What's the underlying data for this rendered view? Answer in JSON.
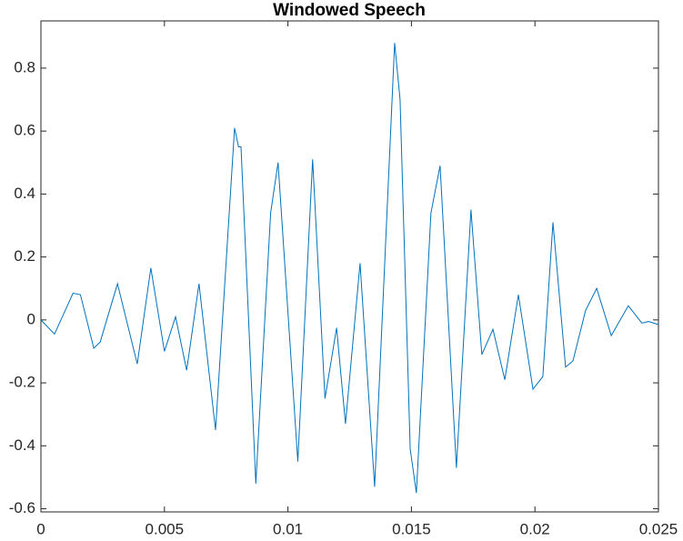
{
  "chart_data": {
    "type": "line",
    "title": "Windowed Speech",
    "x": [
      0,
      0.00055,
      0.0013,
      0.0016,
      0.00214,
      0.0024,
      0.0031,
      0.0039,
      0.00445,
      0.005,
      0.00545,
      0.0059,
      0.0064,
      0.00707,
      0.00784,
      0.008,
      0.0081,
      0.0087,
      0.0093,
      0.0096,
      0.0104,
      0.011,
      0.0115,
      0.01197,
      0.01233,
      0.01292,
      0.01351,
      0.01432,
      0.01454,
      0.01495,
      0.0152,
      0.01579,
      0.01616,
      0.01682,
      0.01741,
      0.01785,
      0.0183,
      0.01878,
      0.01933,
      0.01992,
      0.02032,
      0.02073,
      0.02124,
      0.02154,
      0.02205,
      0.0225,
      0.02309,
      0.02378,
      0.02433,
      0.0246,
      0.025
    ],
    "series": [
      {
        "name": "signal",
        "color": "#0072bd",
        "values": [
          0,
          -0.045,
          0.085,
          0.08,
          -0.09,
          -0.07,
          0.115,
          -0.14,
          0.165,
          -0.1,
          0.01,
          -0.16,
          0.115,
          -0.35,
          0.61,
          0.55,
          0.55,
          -0.52,
          0.34,
          0.5,
          -0.45,
          0.51,
          -0.25,
          -0.025,
          -0.33,
          0.18,
          -0.53,
          0.88,
          0.7,
          -0.41,
          -0.55,
          0.34,
          0.49,
          -0.47,
          0.35,
          -0.11,
          -0.03,
          -0.19,
          0.08,
          -0.22,
          -0.18,
          0.31,
          -0.15,
          -0.13,
          0.03,
          0.1,
          -0.05,
          0.045,
          -0.01,
          -0.005,
          -0.015
        ]
      }
    ],
    "xlim": [
      0,
      0.025
    ],
    "xticks": [
      0,
      0.005,
      0.01,
      0.015,
      0.02,
      0.025
    ],
    "ylim": [
      -0.61,
      0.95
    ],
    "yticks": [
      -0.6,
      -0.4,
      -0.2,
      0,
      0.2,
      0.4,
      0.6,
      0.8
    ]
  }
}
